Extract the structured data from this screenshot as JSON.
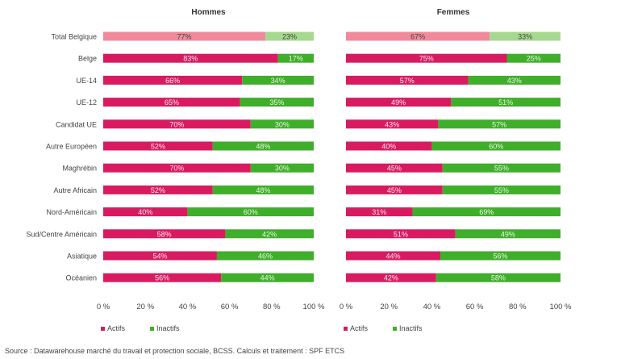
{
  "chart_data": {
    "type": "bar",
    "stacked": true,
    "orientation": "horizontal",
    "categories": [
      "Total Belgique",
      "Belge",
      "UE-14",
      "UE-12",
      "Candidat UE",
      "Autre Européen",
      "Maghrébin",
      "Autre Africain",
      "Nord-Américain",
      "Sud/Centre Américain",
      "Asiatique",
      "Océanien"
    ],
    "panels": [
      {
        "title": "Hommes",
        "series": [
          {
            "name": "Actifs",
            "values": [
              77,
              83,
              66,
              65,
              70,
              52,
              70,
              52,
              40,
              58,
              54,
              56
            ]
          },
          {
            "name": "Inactifs",
            "values": [
              23,
              17,
              34,
              35,
              30,
              48,
              30,
              48,
              60,
              42,
              46,
              44
            ]
          }
        ]
      },
      {
        "title": "Femmes",
        "series": [
          {
            "name": "Actifs",
            "values": [
              67,
              75,
              57,
              49,
              43,
              40,
              45,
              45,
              31,
              51,
              44,
              42
            ]
          },
          {
            "name": "Inactifs",
            "values": [
              33,
              25,
              43,
              51,
              57,
              60,
              55,
              55,
              69,
              49,
              56,
              58
            ]
          }
        ]
      }
    ],
    "xticks": [
      "0 %",
      "20 %",
      "40 %",
      "60 %",
      "80 %",
      "100 %"
    ],
    "xlim": [
      0,
      100
    ],
    "legend": [
      "Actifs",
      "Inactifs"
    ],
    "colors": {
      "actifs": "#d81b60",
      "inactifs": "#3fae2a",
      "actifs_total": "#f08a9b",
      "inactifs_total": "#a6d98f"
    }
  },
  "source": "Source : Datawarehouse marché du travail et protection sociale, BCSS. Calculs et traitement : SPF ETCS"
}
